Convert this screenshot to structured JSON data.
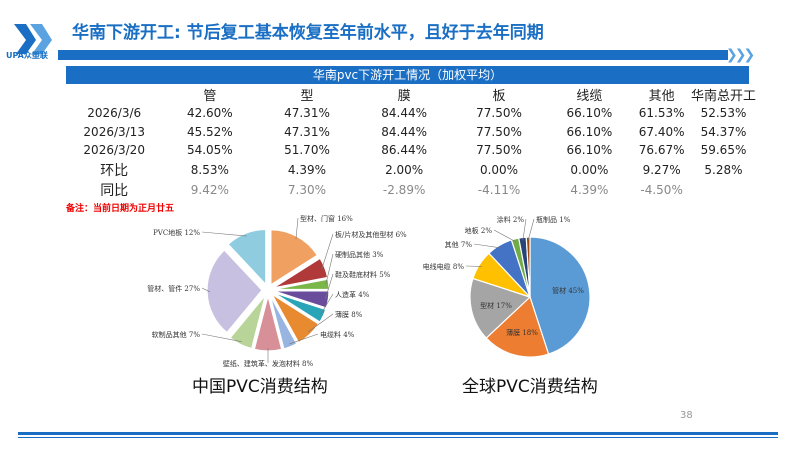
{
  "header": {
    "title": "华南下游开工: 节后复工基本恢复至年前水平，且好于去年同期",
    "logo_text": "UPA众塑联",
    "accent": "#1a6fc4"
  },
  "table": {
    "title": "华南pvc下游开工情况（加权平均）",
    "columns": [
      "",
      "管",
      "型",
      "膜",
      "板",
      "线缆",
      "其他",
      "华南总开工"
    ],
    "rows": [
      [
        "2026/3/6",
        "42.60%",
        "47.31%",
        "84.44%",
        "77.50%",
        "66.10%",
        "61.53%",
        "52.53%"
      ],
      [
        "2026/3/13",
        "45.52%",
        "47.31%",
        "84.44%",
        "77.50%",
        "66.10%",
        "67.40%",
        "54.37%"
      ],
      [
        "2026/3/20",
        "54.05%",
        "51.70%",
        "86.44%",
        "77.50%",
        "66.10%",
        "76.67%",
        "59.65%"
      ],
      [
        "环比",
        "8.53%",
        "4.39%",
        "2.00%",
        "0.00%",
        "0.00%",
        "9.27%",
        "5.28%"
      ],
      [
        "同比",
        "9.42%",
        "7.30%",
        "-2.89%",
        "-4.11%",
        "4.39%",
        "-4.50%",
        ""
      ]
    ]
  },
  "note": "备注：当前日期为正月廿五",
  "chart_data": [
    {
      "type": "pie",
      "title": "中国PVC消费结构",
      "slices": [
        {
          "label": "型材、门窗 16%",
          "value": 16,
          "color": "#f0a060"
        },
        {
          "label": "板/片材及其他型材 6%",
          "value": 6,
          "color": "#b03a3a"
        },
        {
          "label": "硬制品其他 3%",
          "value": 3,
          "color": "#7ab648"
        },
        {
          "label": "鞋及鞋底材料 5%",
          "value": 5,
          "color": "#6a4c9c"
        },
        {
          "label": "人造革 4%",
          "value": 4,
          "color": "#2aa5b8"
        },
        {
          "label": "薄膜 8%",
          "value": 8,
          "color": "#e88a30"
        },
        {
          "label": "电缆料 4%",
          "value": 4,
          "color": "#98b4e0"
        },
        {
          "label": "壁纸、建筑革、发泡材料 8%",
          "value": 8,
          "color": "#d89098"
        },
        {
          "label": "软制品其他 7%",
          "value": 7,
          "color": "#b8d498"
        },
        {
          "label": "管材、管件 27%",
          "value": 27,
          "color": "#c8c0e0"
        },
        {
          "label": "PVC地板 12%",
          "value": 12,
          "color": "#90cce0"
        }
      ]
    },
    {
      "type": "pie",
      "title": "全球PVC消费结构",
      "slices": [
        {
          "label": "管材 45%",
          "value": 45,
          "color": "#5b9bd5"
        },
        {
          "label": "薄膜 18%",
          "value": 18,
          "color": "#ed7d31"
        },
        {
          "label": "型材 17%",
          "value": 17,
          "color": "#a5a5a5"
        },
        {
          "label": "电线电缆 8%",
          "value": 8,
          "color": "#ffc000"
        },
        {
          "label": "其他 7%",
          "value": 7,
          "color": "#4472c4"
        },
        {
          "label": "地板 2%",
          "value": 2,
          "color": "#70ad47"
        },
        {
          "label": "涂料 2%",
          "value": 2,
          "color": "#264478"
        },
        {
          "label": "瓶制品 1%",
          "value": 1,
          "color": "#9e480e"
        }
      ]
    }
  ],
  "page_number": "38"
}
